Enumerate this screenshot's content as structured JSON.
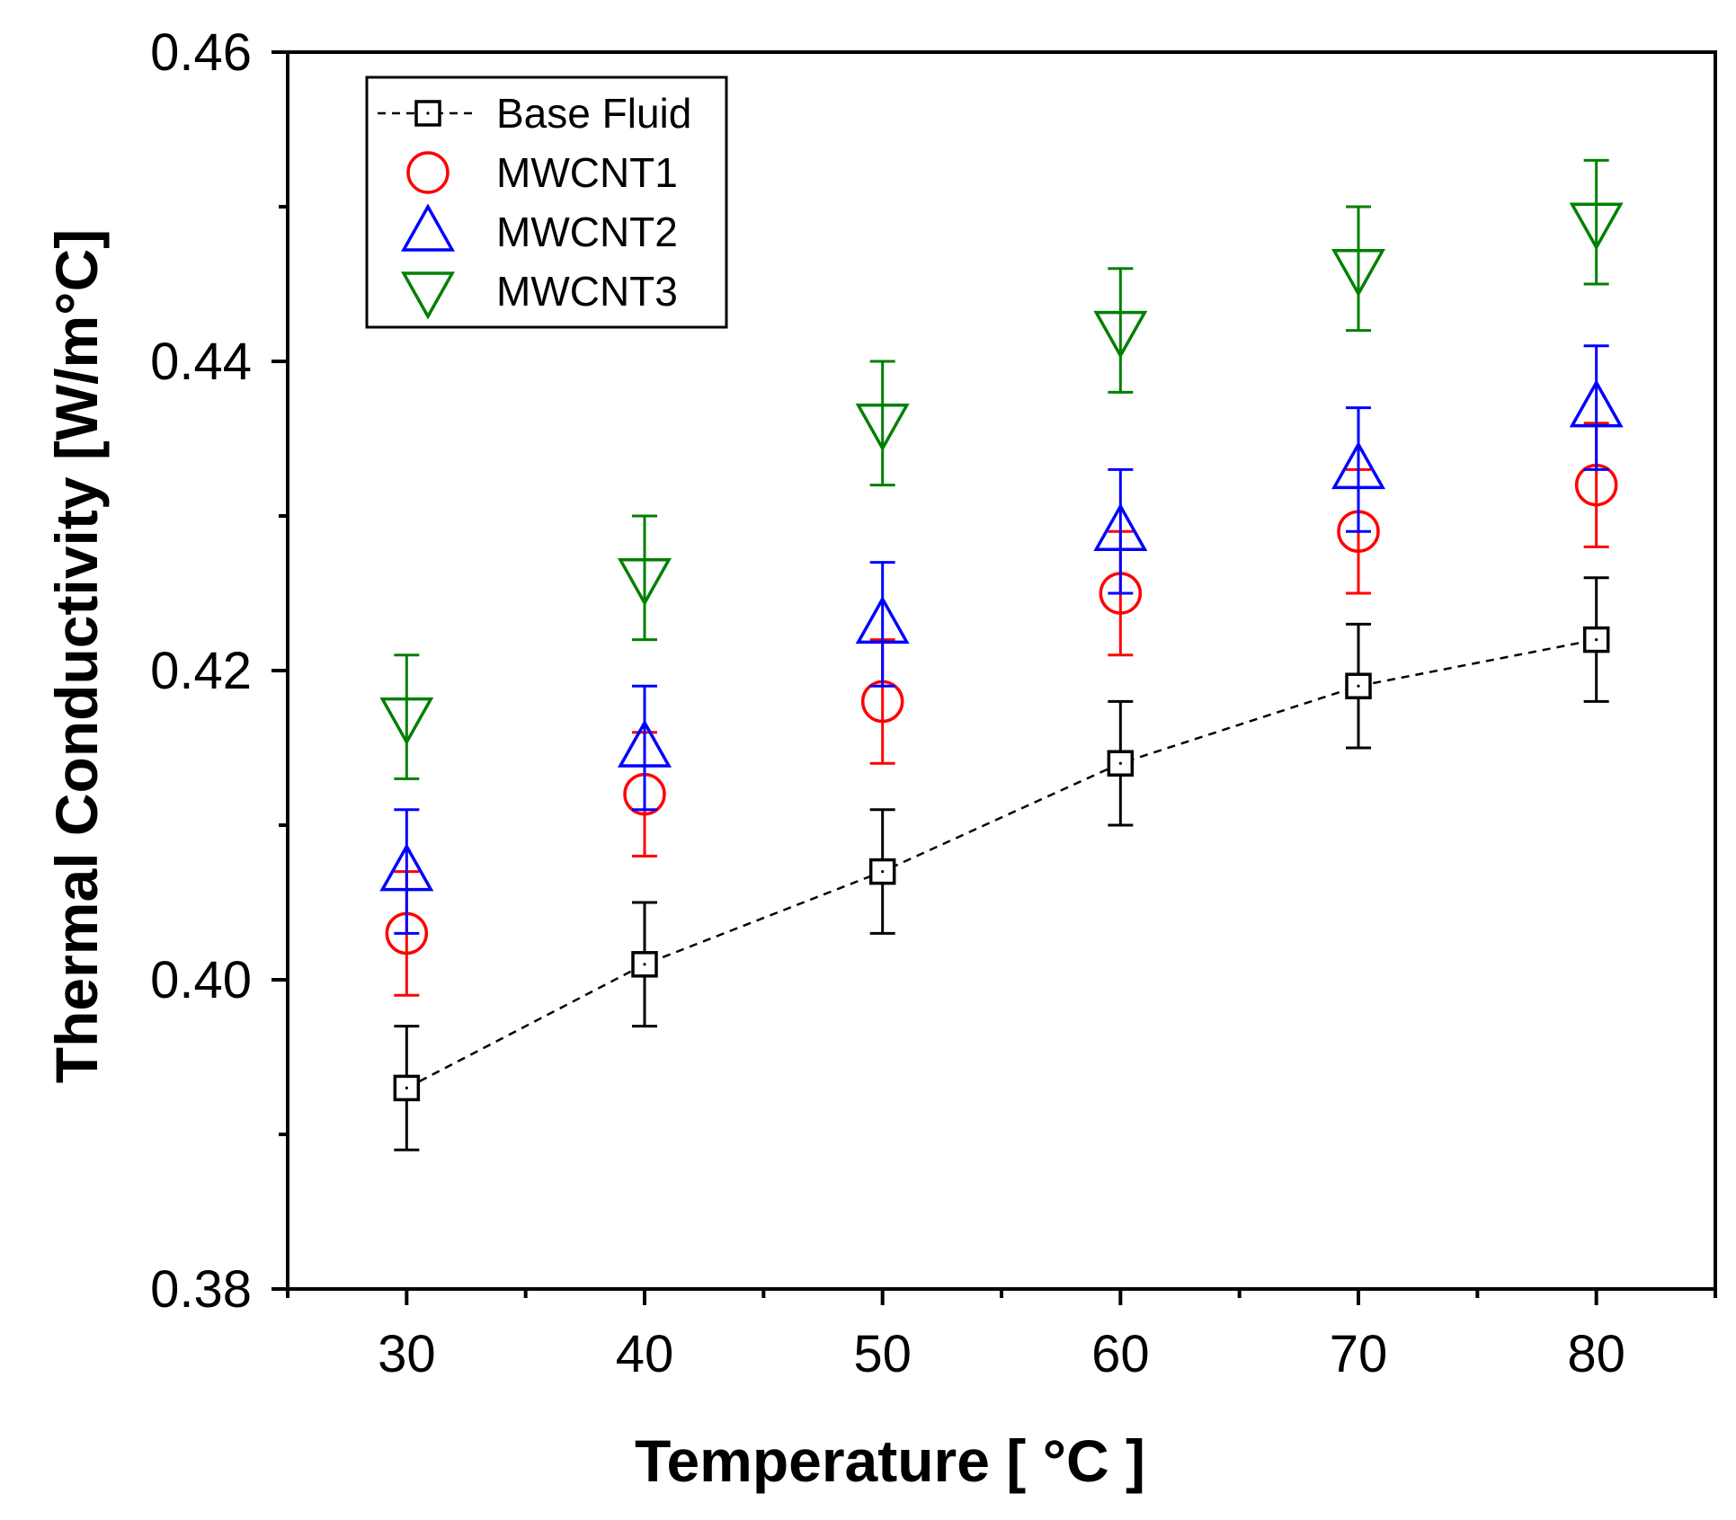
{
  "chart_data": {
    "type": "scatter",
    "xlabel": "Temperature [ °C ]",
    "ylabel": "Thermal Conductivity [W/m°C]",
    "xlim": [
      25,
      85
    ],
    "ylim": [
      0.38,
      0.46
    ],
    "x_ticks": [
      30,
      40,
      50,
      60,
      70,
      80
    ],
    "x_tick_labels": [
      "30",
      "40",
      "50",
      "60",
      "70",
      "80"
    ],
    "x_minor_ticks": [
      25,
      35,
      45,
      55,
      65,
      75,
      85
    ],
    "y_ticks": [
      0.38,
      0.4,
      0.42,
      0.44,
      0.46
    ],
    "y_tick_labels": [
      "0.38",
      "0.40",
      "0.42",
      "0.44",
      "0.46"
    ],
    "y_minor_ticks": [
      0.39,
      0.41,
      0.43,
      0.45
    ],
    "legend_position": "top-left",
    "x": [
      30,
      40,
      50,
      60,
      70,
      80
    ],
    "series": [
      {
        "name": "Base Fluid",
        "marker": "square",
        "line": "dashed",
        "color": "#000000",
        "values": [
          0.393,
          0.401,
          0.407,
          0.414,
          0.419,
          0.422
        ],
        "error": 0.004
      },
      {
        "name": "MWCNT1",
        "marker": "circle",
        "line": "none",
        "color": "#ff0000",
        "values": [
          0.403,
          0.412,
          0.418,
          0.425,
          0.429,
          0.432
        ],
        "error": 0.004
      },
      {
        "name": "MWCNT2",
        "marker": "triangle-up",
        "line": "none",
        "color": "#0000ff",
        "values": [
          0.407,
          0.415,
          0.423,
          0.429,
          0.433,
          0.437
        ],
        "error": 0.004
      },
      {
        "name": "MWCNT3",
        "marker": "triangle-down",
        "line": "none",
        "color": "#008000",
        "values": [
          0.417,
          0.426,
          0.436,
          0.442,
          0.446,
          0.449
        ],
        "error": 0.004
      }
    ]
  }
}
